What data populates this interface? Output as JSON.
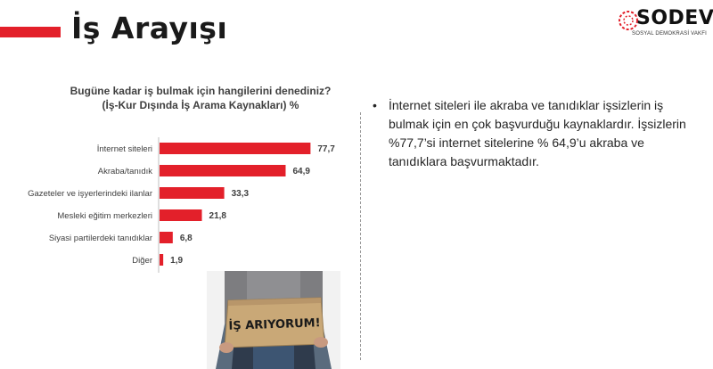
{
  "header": {
    "title": "İş Arayışı",
    "logo_text": "SODEV",
    "logo_subtitle": "SOSYAL DEMOKRASİ VAKFI"
  },
  "chart_data": {
    "type": "bar",
    "orientation": "horizontal",
    "title": "Bugüne kadar iş bulmak için hangilerini denediniz?",
    "subtitle": "(İş-Kur Dışında İş Arama Kaynakları) %",
    "categories": [
      "İnternet siteleri",
      "Akraba/tanıdık",
      "Gazeteler ve işyerlerindeki ilanlar",
      "Mesleki eğitim merkezleri",
      "Siyasi partilerdeki tanıdıklar",
      "Diğer"
    ],
    "values": [
      77.7,
      64.9,
      33.3,
      21.8,
      6.8,
      1.9
    ],
    "value_labels": [
      "77,7",
      "64,9",
      "33,3",
      "21,8",
      "6,8",
      "1,9"
    ],
    "xlim": [
      0,
      100
    ],
    "bar_color": "#e3202a",
    "grid": false,
    "legend": "none"
  },
  "text_panel": {
    "bullet": "İnternet siteleri ile akraba ve tanıdıklar işsizlerin iş bulmak için en çok başvurduğu kaynaklardır. İşsizlerin %77,7’si internet sitelerine % 64,9’u akraba ve tanıdıklara başvurmaktadır."
  },
  "photo": {
    "sign_text": "İŞ ARIYORUM!"
  },
  "colors": {
    "accent": "#e3202a",
    "text": "#262626"
  }
}
